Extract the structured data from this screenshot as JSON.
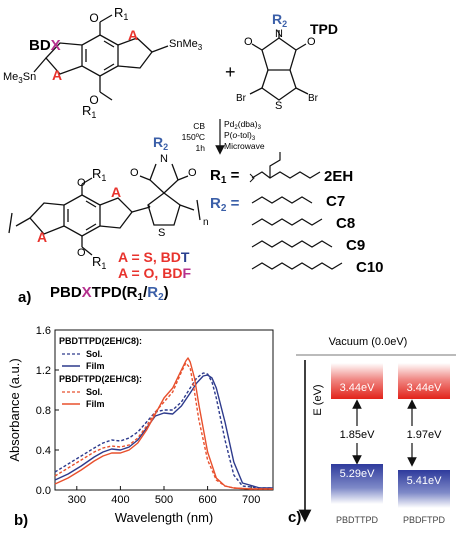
{
  "panel_a": {
    "letter": "a)",
    "bdx": {
      "b": "BD",
      "x": "X"
    },
    "tpd": "TPD",
    "r1_sub": "1",
    "r2_sub": "2",
    "a_atom": "A",
    "tin": "SnMe",
    "tin_sub": "3",
    "me3sn": {
      "a": "Me",
      "b": "3",
      "c": "Sn"
    },
    "plus": "+",
    "br": "Br",
    "s": "S",
    "o": "O",
    "n": "N",
    "cond_left": [
      "CB",
      "150ºC",
      "1h"
    ],
    "cond_right": {
      "cat": "Pd",
      "cat_sub": "2",
      "cat_rest": "(dba)",
      "cat_sub2": "3",
      "lig1": "P(",
      "lig_ital": "o",
      "lig2": "-tol)",
      "lig_sub": "3",
      "mw": "Microwave"
    },
    "n_sub": "n",
    "r1_def": "2EH",
    "r2_defs": [
      "C7",
      "C8",
      "C9",
      "C10"
    ],
    "a_s": {
      "lhs": "A = S, BD",
      "t": "T"
    },
    "a_o": {
      "lhs": "A = O, BD",
      "f": "F"
    },
    "name": {
      "pre": "PBD",
      "x": "X",
      "mid": "TPD(R",
      "sub1": "1",
      "slash": "/",
      "r2": "R",
      "sub2": "2",
      "close": ")"
    }
  },
  "colors": {
    "red": "#e8332d",
    "blue": "#2a3f8f",
    "magenta": "#b5318e",
    "r2blue": "#3b5fa8"
  },
  "chart_data": {
    "type": "line",
    "letter": "b)",
    "xlabel": "Wavelength (nm)",
    "ylabel": "Absorbance (a.u.)",
    "xlim": [
      250,
      750
    ],
    "ylim": [
      0.0,
      1.6
    ],
    "xticks": [
      300,
      400,
      500,
      600,
      700
    ],
    "yticks": [
      0.0,
      0.4,
      0.8,
      1.2,
      1.6
    ],
    "legend": {
      "group1": "PBDTTPD(2EH/C8):",
      "group2": "PBDFTPD(2EH/C8):",
      "sol": "Sol.",
      "film": "Film"
    },
    "series": [
      {
        "color": "#2d3a8c",
        "dash": true,
        "x": [
          250,
          280,
          310,
          340,
          360,
          380,
          400,
          420,
          440,
          460,
          480,
          500,
          520,
          540,
          560,
          575,
          590,
          600,
          610,
          620,
          640,
          660,
          680,
          720,
          750
        ],
        "y": [
          0.18,
          0.26,
          0.34,
          0.42,
          0.47,
          0.5,
          0.49,
          0.52,
          0.58,
          0.68,
          0.78,
          0.8,
          0.8,
          0.88,
          1.02,
          1.12,
          1.17,
          1.16,
          1.08,
          0.92,
          0.5,
          0.15,
          0.04,
          0.02,
          0.02
        ]
      },
      {
        "color": "#2d3a8c",
        "dash": false,
        "x": [
          250,
          280,
          310,
          340,
          360,
          380,
          400,
          420,
          440,
          460,
          480,
          500,
          520,
          540,
          560,
          575,
          590,
          600,
          610,
          620,
          640,
          660,
          680,
          720,
          750
        ],
        "y": [
          0.1,
          0.16,
          0.24,
          0.33,
          0.38,
          0.41,
          0.4,
          0.43,
          0.5,
          0.62,
          0.74,
          0.77,
          0.76,
          0.84,
          0.97,
          1.07,
          1.14,
          1.15,
          1.12,
          1.02,
          0.68,
          0.28,
          0.07,
          0.02,
          0.02
        ]
      },
      {
        "color": "#e8502d",
        "dash": true,
        "x": [
          250,
          280,
          310,
          340,
          360,
          380,
          400,
          420,
          440,
          460,
          480,
          500,
          520,
          540,
          550,
          560,
          570,
          580,
          600,
          620,
          640,
          660,
          700,
          750
        ],
        "y": [
          0.14,
          0.22,
          0.3,
          0.38,
          0.42,
          0.44,
          0.43,
          0.45,
          0.52,
          0.64,
          0.78,
          0.88,
          0.98,
          1.18,
          1.27,
          1.22,
          0.98,
          0.7,
          0.3,
          0.1,
          0.04,
          0.02,
          0.01,
          0.01
        ]
      },
      {
        "color": "#e8502d",
        "dash": false,
        "x": [
          250,
          280,
          310,
          340,
          360,
          380,
          400,
          420,
          440,
          460,
          480,
          500,
          520,
          540,
          550,
          555,
          560,
          570,
          580,
          600,
          620,
          640,
          660,
          700,
          750
        ],
        "y": [
          0.06,
          0.12,
          0.2,
          0.29,
          0.34,
          0.37,
          0.37,
          0.4,
          0.47,
          0.6,
          0.76,
          0.92,
          1.02,
          1.2,
          1.29,
          1.32,
          1.28,
          1.12,
          0.85,
          0.38,
          0.12,
          0.04,
          0.02,
          0.01,
          0.01
        ]
      }
    ]
  },
  "panel_c": {
    "letter": "c)",
    "vacuum": "Vacuum (0.0eV)",
    "axis": "E (eV)",
    "polymers": [
      {
        "name": "PBDTTPD",
        "lumo": "3.44eV",
        "homo": "5.29eV",
        "gap": "1.85eV"
      },
      {
        "name": "PBDFTPD",
        "lumo": "3.44eV",
        "homo": "5.41eV",
        "gap": "1.97eV"
      }
    ]
  }
}
